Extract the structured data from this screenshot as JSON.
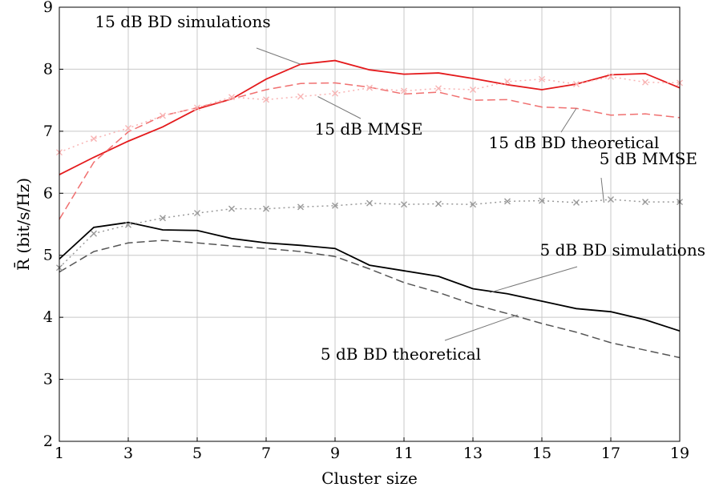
{
  "chart_data": {
    "type": "line",
    "title": "",
    "xlabel": "Cluster size",
    "ylabel": "R̄ (bit/s/Hz)",
    "xlim": [
      1,
      19
    ],
    "ylim": [
      2,
      9
    ],
    "xticks": [
      1,
      3,
      5,
      7,
      9,
      11,
      13,
      15,
      17,
      19
    ],
    "yticks": [
      2,
      3,
      4,
      5,
      6,
      7,
      8,
      9
    ],
    "grid": true,
    "legend": "none",
    "x": [
      1,
      2,
      3,
      4,
      5,
      6,
      7,
      8,
      9,
      10,
      11,
      12,
      13,
      14,
      15,
      16,
      17,
      18,
      19
    ],
    "series": [
      {
        "name": "15 dB BD simulations",
        "color": "#e41a1c",
        "style": "solid",
        "marker": "none",
        "values": [
          6.3,
          6.58,
          6.84,
          7.07,
          7.36,
          7.52,
          7.84,
          8.08,
          8.14,
          7.99,
          7.92,
          7.94,
          7.85,
          7.75,
          7.67,
          7.76,
          7.91,
          7.93,
          7.7
        ]
      },
      {
        "name": "15 dB BD theoretical",
        "color": "#f07070",
        "style": "dashed",
        "marker": "none",
        "values": [
          5.58,
          6.5,
          6.99,
          7.25,
          7.38,
          7.52,
          7.67,
          7.77,
          7.78,
          7.71,
          7.6,
          7.63,
          7.5,
          7.51,
          7.39,
          7.37,
          7.26,
          7.28,
          7.22
        ]
      },
      {
        "name": "15 dB MMSE",
        "color": "#f8b4b4",
        "style": "dotted",
        "marker": "x",
        "values": [
          6.66,
          6.88,
          7.05,
          7.25,
          7.38,
          7.55,
          7.51,
          7.56,
          7.61,
          7.7,
          7.65,
          7.69,
          7.67,
          7.8,
          7.84,
          7.76,
          7.88,
          7.79,
          7.78
        ]
      },
      {
        "name": "5 dB BD simulations",
        "color": "#000000",
        "style": "solid",
        "marker": "none",
        "values": [
          4.94,
          5.45,
          5.53,
          5.41,
          5.4,
          5.27,
          5.2,
          5.16,
          5.11,
          4.84,
          4.75,
          4.66,
          4.46,
          4.38,
          4.26,
          4.14,
          4.09,
          3.96,
          3.78
        ]
      },
      {
        "name": "5 dB BD theoretical",
        "color": "#555555",
        "style": "dashed",
        "marker": "none",
        "values": [
          4.73,
          5.06,
          5.2,
          5.24,
          5.2,
          5.15,
          5.11,
          5.06,
          4.98,
          4.78,
          4.56,
          4.4,
          4.21,
          4.06,
          3.9,
          3.76,
          3.59,
          3.47,
          3.35
        ]
      },
      {
        "name": "5 dB MMSE",
        "color": "#999999",
        "style": "dotted",
        "marker": "x",
        "values": [
          4.8,
          5.35,
          5.49,
          5.6,
          5.68,
          5.75,
          5.75,
          5.78,
          5.8,
          5.84,
          5.82,
          5.83,
          5.82,
          5.87,
          5.88,
          5.85,
          5.9,
          5.86,
          5.86
        ]
      }
    ],
    "annotations": [
      {
        "text": "15 dB BD simulations",
        "target_series": 0,
        "target_x": 8,
        "target_y": 8.08,
        "anchor": "upper-left"
      },
      {
        "text": "15 dB MMSE",
        "target_series": 2,
        "target_x": 8.5,
        "target_y": 7.56,
        "anchor": "center"
      },
      {
        "text": "15 dB BD theoretical",
        "target_series": 1,
        "target_x": 16,
        "target_y": 7.37,
        "anchor": "center-right"
      },
      {
        "text": "5 dB MMSE",
        "target_series": 5,
        "target_x": 16.8,
        "target_y": 5.85,
        "anchor": "right"
      },
      {
        "text": "5 dB BD simulations",
        "target_series": 3,
        "target_x": 13.5,
        "target_y": 4.4,
        "anchor": "right"
      },
      {
        "text": "5 dB BD theoretical",
        "target_series": 4,
        "target_x": 14.3,
        "target_y": 4.04,
        "anchor": "lower-center"
      }
    ]
  }
}
